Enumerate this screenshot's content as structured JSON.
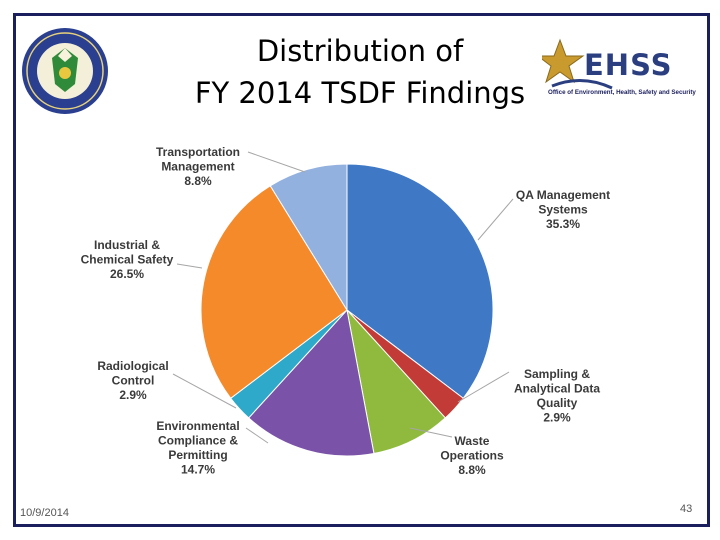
{
  "slide": {
    "title_line1": "Distribution of",
    "title_line2": "FY 2014 TSDF Findings",
    "date": "10/9/2014",
    "page_number": "43",
    "logo_right": {
      "text": "EHSS",
      "subtitle": "Office of Environment, Health, Safety and Security"
    },
    "logo_left": "seal-icon"
  },
  "chart_data": {
    "type": "pie",
    "title": "Distribution of FY 2014 TSDF Findings",
    "slices": [
      {
        "name_lines": [
          "QA Management",
          "Systems"
        ],
        "value": 35.3,
        "label": "35.3%",
        "color": "#3f78c4"
      },
      {
        "name_lines": [
          "Sampling &",
          "Analytical Data",
          "Quality"
        ],
        "value": 2.9,
        "label": "2.9%",
        "color": "#c23b36"
      },
      {
        "name_lines": [
          "Waste",
          "Operations"
        ],
        "value": 8.8,
        "label": "8.8%",
        "color": "#8fba3e"
      },
      {
        "name_lines": [
          "Environmental",
          "Compliance &",
          "Permitting"
        ],
        "value": 14.7,
        "label": "14.7%",
        "color": "#7a52a8"
      },
      {
        "name_lines": [
          "Radiological",
          "Control"
        ],
        "value": 2.9,
        "label": "2.9%",
        "color": "#2fa9c9"
      },
      {
        "name_lines": [
          "Industrial &",
          "Chemical Safety"
        ],
        "value": 26.5,
        "label": "26.5%",
        "color": "#f58a2b"
      },
      {
        "name_lines": [
          "Transportation",
          "Management"
        ],
        "value": 8.8,
        "label": "8.8%",
        "color": "#92b1df"
      }
    ]
  }
}
